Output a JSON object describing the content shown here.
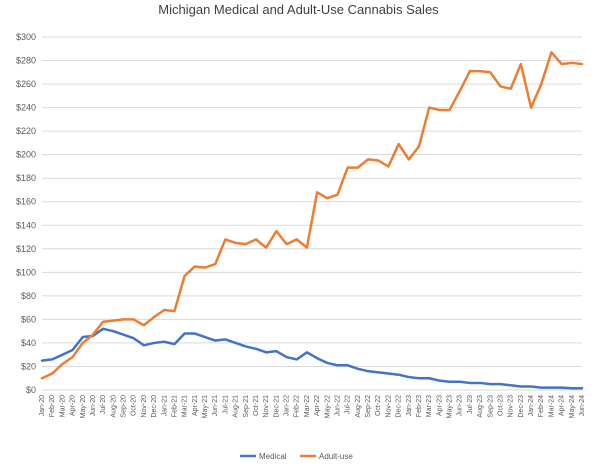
{
  "chart_data": {
    "type": "line",
    "title": "Michigan Medical and Adult-Use Cannabis Sales",
    "xlabel": "",
    "ylabel": "",
    "ylim": [
      0,
      300
    ],
    "y_ticks": [
      "$0",
      "$20",
      "$40",
      "$60",
      "$80",
      "$100",
      "$120",
      "$140",
      "$160",
      "$180",
      "$200",
      "$220",
      "$240",
      "$260",
      "$280",
      "$300"
    ],
    "grid": "horizontal",
    "legend_position": "bottom",
    "categories": [
      "Jan-20",
      "Feb-20",
      "Mar-20",
      "Apr-20",
      "May-20",
      "Jun-20",
      "Jul-20",
      "Aug-20",
      "Sep-20",
      "Oct-20",
      "Nov-20",
      "Dec-20",
      "Jan-21",
      "Feb-21",
      "Mar-21",
      "Apr-21",
      "May-21",
      "Jun-21",
      "Jul-21",
      "Aug-21",
      "Sep-21",
      "Oct-21",
      "Nov-21",
      "Dec-21",
      "Jan-22",
      "Feb-22",
      "Mar-22",
      "Apr-22",
      "May-22",
      "Jun-22",
      "Jul-22",
      "Aug-22",
      "Sep-22",
      "Oct-22",
      "Nov-22",
      "Dec-22",
      "Jan-23",
      "Feb-23",
      "Mar-23",
      "Apr-23",
      "May-23",
      "Jun-23",
      "Jul-23",
      "Aug-23",
      "Sep-23",
      "Oct-23",
      "Nov-23",
      "Dec-23",
      "Jan-24",
      "Feb-24",
      "Mar-24",
      "Apr-24",
      "May-24",
      "Jun-24"
    ],
    "series": [
      {
        "name": "Medical",
        "color": "#4472c4",
        "values": [
          25,
          26,
          30,
          34,
          45,
          46,
          52,
          50,
          47,
          44,
          38,
          40,
          41,
          39,
          48,
          48,
          45,
          42,
          43,
          40,
          37,
          35,
          32,
          33,
          28,
          26,
          32,
          27,
          23,
          21,
          21,
          18,
          16,
          15,
          14,
          13,
          11,
          10,
          10,
          8,
          7,
          7,
          6,
          6,
          5,
          5,
          4,
          3,
          3,
          2,
          2,
          2,
          1.5,
          1.5
        ]
      },
      {
        "name": "Adult-use",
        "color": "#ed7d31",
        "values": [
          10,
          14,
          22,
          28,
          40,
          47,
          58,
          59,
          60,
          60,
          55,
          62,
          68,
          67,
          97,
          105,
          104,
          107,
          128,
          125,
          124,
          128,
          121,
          135,
          124,
          128,
          121,
          168,
          163,
          166,
          189,
          189,
          196,
          195,
          190,
          209,
          196,
          207,
          240,
          238,
          238,
          254,
          271,
          271,
          270,
          258,
          256,
          277,
          240,
          260,
          287,
          277,
          278,
          277
        ]
      }
    ]
  }
}
